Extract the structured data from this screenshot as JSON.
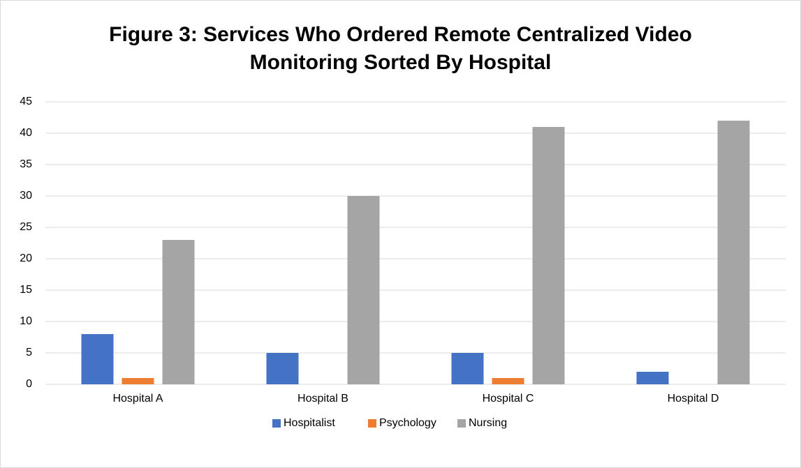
{
  "chart_data": {
    "type": "bar",
    "title": "Figure 3: Services Who Ordered Remote Centralized Video\nMonitoring Sorted By Hospital",
    "categories": [
      "Hospital A",
      "Hospital B",
      "Hospital C",
      "Hospital D"
    ],
    "series": [
      {
        "name": "Hospitalist",
        "color": "#4472c4",
        "values": [
          8,
          5,
          5,
          2
        ]
      },
      {
        "name": "Psychology",
        "color": "#ed7d31",
        "values": [
          1,
          0,
          1,
          0
        ]
      },
      {
        "name": "Nursing",
        "color": "#a5a5a5",
        "values": [
          23,
          30,
          41,
          42
        ]
      }
    ],
    "ylim": [
      0,
      45
    ],
    "yticks": [
      0,
      5,
      10,
      15,
      20,
      25,
      30,
      35,
      40,
      45
    ],
    "grid": true,
    "legend": "bottom"
  }
}
